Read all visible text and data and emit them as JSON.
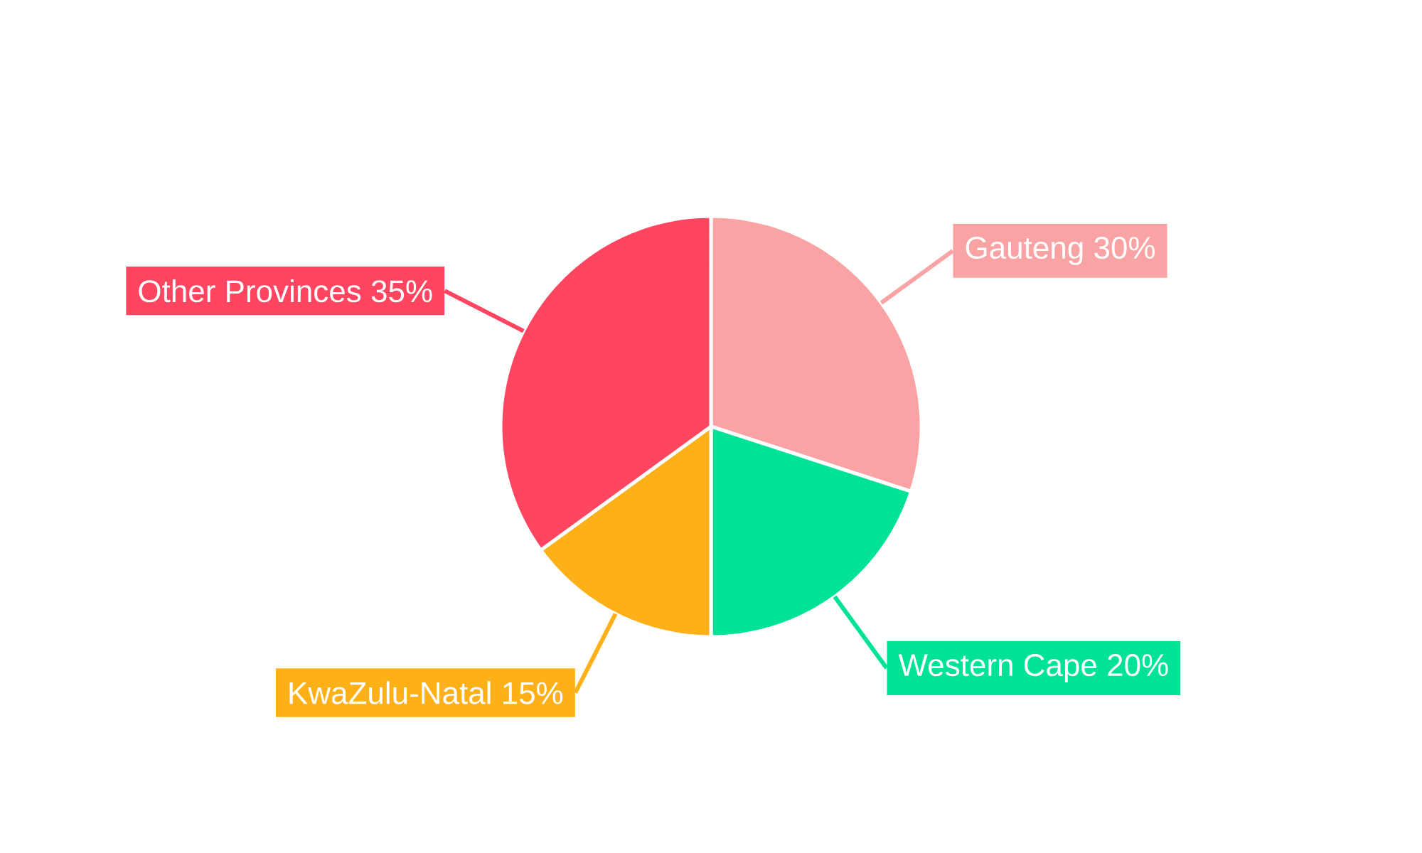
{
  "chart_data": {
    "type": "pie",
    "categories": [
      "Gauteng",
      "Western Cape",
      "KwaZulu-Natal",
      "Other Provinces"
    ],
    "values": [
      30,
      20,
      15,
      35
    ],
    "value_labels": [
      "30%",
      "20%",
      "15%",
      "35%"
    ],
    "colors": [
      "#f9a3a4",
      "#00e396",
      "#feb019",
      "#ff4560"
    ]
  }
}
